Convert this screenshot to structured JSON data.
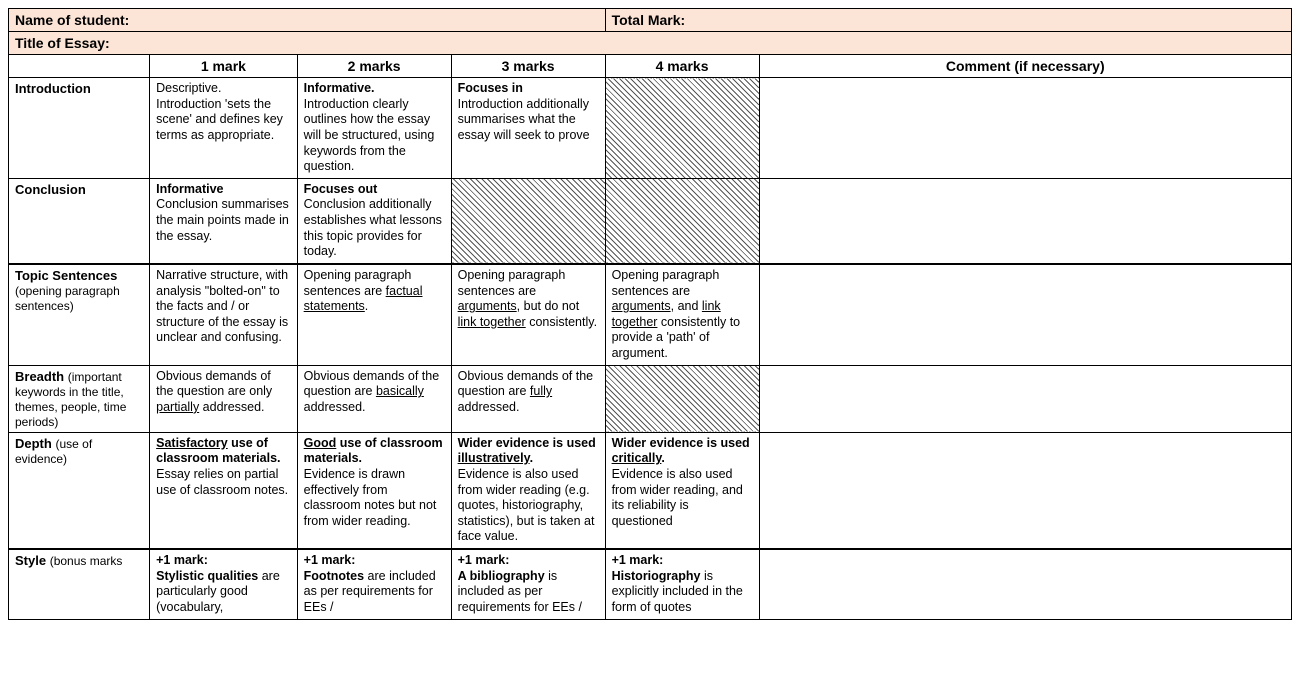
{
  "header": {
    "student_label": "Name of student:",
    "totalmark_label": "Total Mark:",
    "title_label": "Title of Essay:"
  },
  "columns": [
    "1 mark",
    "2 marks",
    "3 marks",
    "4 marks",
    "Comment (if necessary)"
  ],
  "rows": [
    {
      "label_bold": "Introduction",
      "label_light": "",
      "m1": "Descriptive.\nIntroduction 'sets the scene' and defines key terms as appropriate.",
      "m2": "<b>Informative.</b>\nIntroduction clearly outlines how the essay will be structured, using keywords from the question.",
      "m3": "<b>Focuses in</b>\nIntroduction additionally summarises what the essay will seek to prove",
      "m4": "HATCH",
      "comment": ""
    },
    {
      "label_bold": "Conclusion",
      "label_light": "",
      "m1": "<b>Informative</b>\nConclusion summarises the main points made in the essay.",
      "m2": "<b>Focuses out</b>\nConclusion additionally establishes what lessons this topic provides for today.",
      "m3": "HATCH",
      "m4": "HATCH",
      "comment": ""
    },
    {
      "label_bold": "Topic Sentences",
      "label_light": "(opening paragraph sentences)",
      "m1": "Narrative structure, with analysis \"bolted-on\" to the facts and / or structure of the essay is unclear and confusing.",
      "m2": "Opening paragraph sentences are <u>factual statements</u>.",
      "m3": "Opening paragraph sentences are <u>arguments</u>, but do not <u>link together</u> consistently.",
      "m4": "Opening paragraph sentences are <u>arguments</u>, and <u>link together</u> consistently to provide a 'path' of argument.",
      "comment": ""
    },
    {
      "label_bold": "Breadth",
      "label_light": "(important keywords in the title, themes, people, time periods)",
      "m1": "Obvious demands of the question are only <u>partially</u> addressed.",
      "m2": "Obvious demands of the question are <u>basically</u> addressed.",
      "m3": "Obvious demands of the question are <u>fully</u> addressed.",
      "m4": "HATCH",
      "comment": ""
    },
    {
      "label_bold": "Depth",
      "label_light": "(use of evidence)",
      "m1": "<b><u>Satisfactory</u> use of classroom materials.</b>\nEssay relies on partial use of classroom notes.",
      "m2": "<b><u>Good</u> use of classroom materials.</b>\nEvidence is drawn effectively from classroom notes but not from wider reading.",
      "m3": "<b>Wider evidence is used <u>illustratively</u>.</b>\nEvidence is also used from wider reading (e.g. quotes, historiography, statistics), but is taken at face value.",
      "m4": "<b>Wider evidence is used <u>critically</u>.</b>\nEvidence is also used from wider reading, and its reliability is questioned",
      "comment": ""
    },
    {
      "label_bold": "Style",
      "label_light": "(bonus marks",
      "m1": "<b>+1 mark:</b>\n<b>Stylistic qualities</b> are particularly good (vocabulary,",
      "m2": "<b>+1 mark:</b>\n<b>Footnotes</b> are included as per requirements for EEs /",
      "m3": "<b>+1 mark:</b>\n<b>A bibliography</b> is included as per requirements for EEs /",
      "m4": "<b>+1 mark:</b>\n<b>Historiography</b> is explicitly included in the form of quotes",
      "comment": ""
    }
  ],
  "style": {
    "header_bg": "#fce4d6",
    "border_color": "#000000",
    "hatch_fg": "#555555",
    "hatch_bg": "#ffffff",
    "font_family": "Arial",
    "base_fontsize": 13,
    "col_widths_pct": [
      11,
      11.5,
      12,
      12,
      12,
      41.5
    ]
  }
}
